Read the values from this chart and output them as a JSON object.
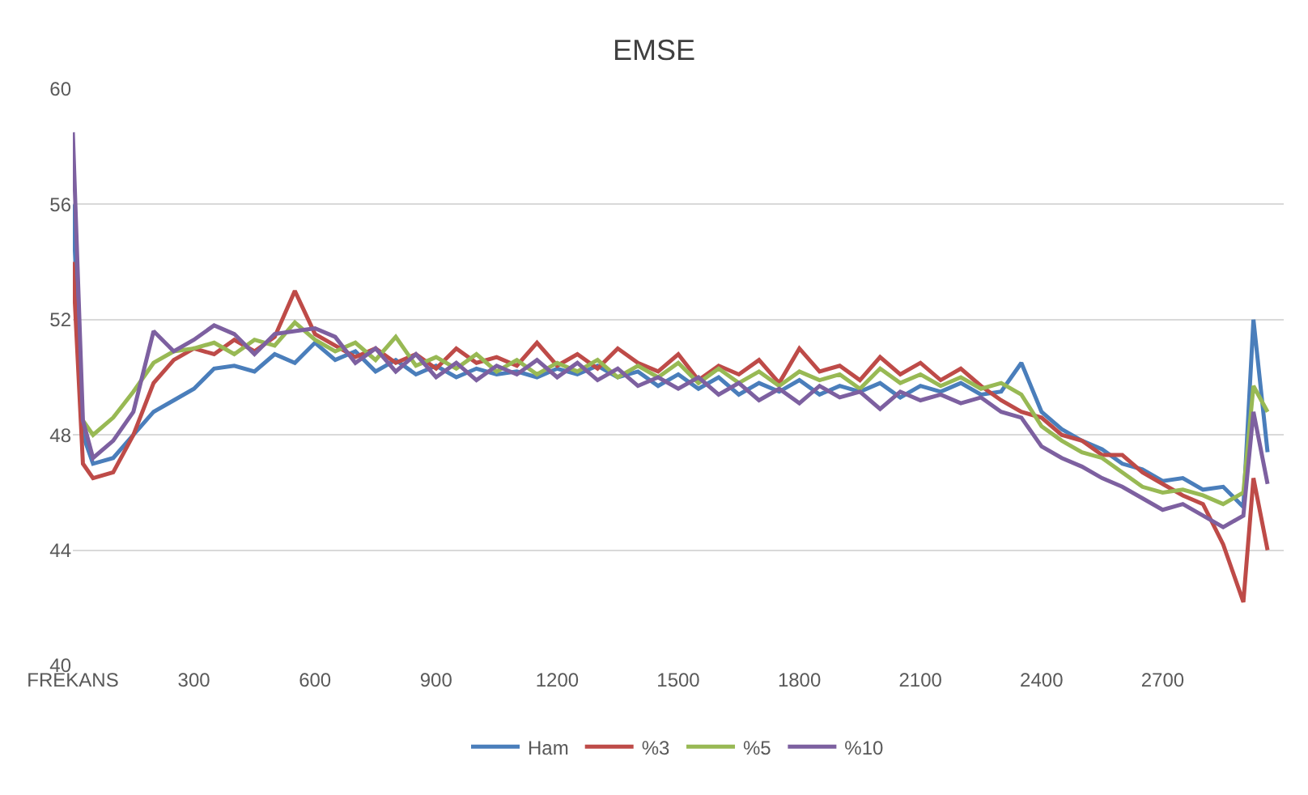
{
  "chart_data": {
    "type": "line",
    "title": "EMSE",
    "x": [
      0,
      25,
      50,
      100,
      150,
      200,
      250,
      300,
      350,
      400,
      450,
      500,
      550,
      600,
      650,
      700,
      750,
      800,
      850,
      900,
      950,
      1000,
      1050,
      1100,
      1150,
      1200,
      1250,
      1300,
      1350,
      1400,
      1450,
      1500,
      1550,
      1600,
      1650,
      1700,
      1750,
      1800,
      1850,
      1900,
      1950,
      2000,
      2050,
      2100,
      2150,
      2200,
      2250,
      2300,
      2350,
      2400,
      2450,
      2500,
      2550,
      2600,
      2650,
      2700,
      2750,
      2800,
      2850,
      2900,
      2925,
      2960
    ],
    "series": [
      {
        "name": "Ham",
        "color": "#4a7ebb",
        "values": [
          56,
          48,
          47,
          47.2,
          48,
          48.8,
          49.2,
          49.6,
          50.3,
          50.4,
          50.2,
          50.8,
          50.5,
          51.2,
          50.6,
          50.9,
          50.2,
          50.6,
          50.1,
          50.4,
          50,
          50.3,
          50.1,
          50.2,
          50,
          50.3,
          50.1,
          50.4,
          50,
          50.2,
          49.7,
          50.1,
          49.6,
          50,
          49.4,
          49.8,
          49.5,
          49.9,
          49.4,
          49.7,
          49.5,
          49.8,
          49.3,
          49.7,
          49.5,
          49.8,
          49.4,
          49.5,
          50.5,
          48.8,
          48.2,
          47.8,
          47.5,
          47,
          46.8,
          46.4,
          46.5,
          46.1,
          46.2,
          45.5,
          52,
          47.4
        ]
      },
      {
        "name": "%3",
        "color": "#be4b48",
        "values": [
          54,
          47,
          46.5,
          46.7,
          48,
          49.8,
          50.6,
          51,
          50.8,
          51.3,
          50.9,
          51.4,
          53,
          51.5,
          51.1,
          50.7,
          51,
          50.5,
          50.8,
          50.3,
          51,
          50.5,
          50.7,
          50.4,
          51.2,
          50.4,
          50.8,
          50.3,
          51,
          50.5,
          50.2,
          50.8,
          49.9,
          50.4,
          50.1,
          50.6,
          49.8,
          51,
          50.2,
          50.4,
          49.9,
          50.7,
          50.1,
          50.5,
          49.9,
          50.3,
          49.7,
          49.2,
          48.8,
          48.6,
          48,
          47.8,
          47.3,
          47.3,
          46.7,
          46.3,
          45.9,
          45.6,
          44.2,
          42.2,
          46.5,
          44
        ]
      },
      {
        "name": "%5",
        "color": "#98b954",
        "values": [
          null,
          48.5,
          48,
          48.6,
          49.5,
          50.5,
          50.9,
          51,
          51.2,
          50.8,
          51.3,
          51.1,
          51.9,
          51.3,
          50.9,
          51.2,
          50.6,
          51.4,
          50.4,
          50.7,
          50.3,
          50.8,
          50.2,
          50.6,
          50.1,
          50.5,
          50.2,
          50.6,
          50,
          50.4,
          50,
          50.5,
          49.8,
          50.3,
          49.8,
          50.2,
          49.7,
          50.2,
          49.9,
          50.1,
          49.6,
          50.3,
          49.8,
          50.1,
          49.7,
          50,
          49.6,
          49.8,
          49.4,
          48.3,
          47.8,
          47.4,
          47.2,
          46.7,
          46.2,
          46,
          46.1,
          45.9,
          45.6,
          46,
          49.7,
          48.8
        ]
      },
      {
        "name": "%10",
        "color": "#7d60a0",
        "values": [
          58.5,
          48.5,
          47.2,
          47.8,
          48.8,
          51.6,
          50.9,
          51.3,
          51.8,
          51.5,
          50.8,
          51.5,
          51.6,
          51.7,
          51.4,
          50.5,
          51,
          50.2,
          50.8,
          50,
          50.5,
          49.9,
          50.4,
          50.1,
          50.6,
          50,
          50.5,
          49.9,
          50.3,
          49.7,
          50,
          49.6,
          50,
          49.4,
          49.8,
          49.2,
          49.6,
          49.1,
          49.7,
          49.3,
          49.5,
          48.9,
          49.5,
          49.2,
          49.4,
          49.1,
          49.3,
          48.8,
          48.6,
          47.6,
          47.2,
          46.9,
          46.5,
          46.2,
          45.8,
          45.4,
          45.6,
          45.2,
          44.8,
          45.2,
          48.8,
          46.3
        ]
      }
    ],
    "xlim": [
      0,
      3000
    ],
    "xticks": [
      {
        "value": 0,
        "label": "FREKANS"
      },
      300,
      600,
      900,
      1200,
      1500,
      1800,
      2100,
      2400,
      2700
    ],
    "ylim": [
      40,
      60
    ],
    "yticks": [
      40,
      44,
      48,
      52,
      56,
      60
    ],
    "grid": "y",
    "legend": "bottom",
    "marker": "none",
    "line_style": "solid"
  }
}
